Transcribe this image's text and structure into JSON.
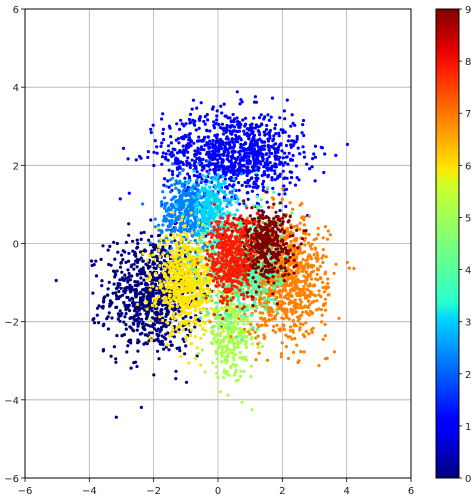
{
  "chart_data": {
    "type": "scatter",
    "title": "",
    "xlabel": "",
    "ylabel": "",
    "xlim": [
      -6,
      6
    ],
    "ylim": [
      -6,
      6
    ],
    "x_ticks": [
      "−6",
      "−4",
      "−2",
      "0",
      "2",
      "4",
      "6"
    ],
    "y_ticks": [
      "6",
      "4",
      "2",
      "0",
      "−2",
      "−4",
      "−6"
    ],
    "grid": true,
    "colormap": "jet",
    "colorbar": {
      "range": [
        0,
        9
      ],
      "ticks": [
        "9",
        "8",
        "7",
        "6",
        "5",
        "4",
        "3",
        "2",
        "1",
        "0"
      ]
    },
    "clusters": [
      {
        "value": 0,
        "color": "#00007f",
        "center": [
          -2.0,
          -1.3
        ],
        "spread": [
          0.75,
          0.75
        ],
        "approx_points": 900
      },
      {
        "value": 1,
        "color": "#0000ff",
        "center": [
          0.5,
          2.3
        ],
        "spread": [
          1.1,
          0.55
        ],
        "approx_points": 1000
      },
      {
        "value": 2,
        "color": "#0080ff",
        "center": [
          -0.9,
          0.8
        ],
        "spread": [
          0.45,
          0.45
        ],
        "approx_points": 450
      },
      {
        "value": 3,
        "color": "#00d4ff",
        "center": [
          -0.2,
          0.9
        ],
        "spread": [
          0.35,
          0.4
        ],
        "approx_points": 250
      },
      {
        "value": 4,
        "color": "#4dffaa",
        "center": [
          0.8,
          -0.5
        ],
        "spread": [
          0.55,
          0.7
        ],
        "approx_points": 650
      },
      {
        "value": 5,
        "color": "#aaff4d",
        "center": [
          0.4,
          -2.2
        ],
        "spread": [
          0.4,
          0.6
        ],
        "approx_points": 350
      },
      {
        "value": 6,
        "color": "#ffe600",
        "center": [
          -1.0,
          -1.0
        ],
        "spread": [
          0.45,
          0.6
        ],
        "approx_points": 650
      },
      {
        "value": 7,
        "color": "#ff8000",
        "center": [
          2.1,
          -0.9
        ],
        "spread": [
          0.65,
          0.75
        ],
        "approx_points": 900
      },
      {
        "value": 8,
        "color": "#ff1a00",
        "center": [
          0.4,
          -0.4
        ],
        "spread": [
          0.35,
          0.55
        ],
        "approx_points": 450
      },
      {
        "value": 9,
        "color": "#800000",
        "center": [
          1.4,
          0.0
        ],
        "spread": [
          0.45,
          0.45
        ],
        "approx_points": 450
      }
    ]
  }
}
